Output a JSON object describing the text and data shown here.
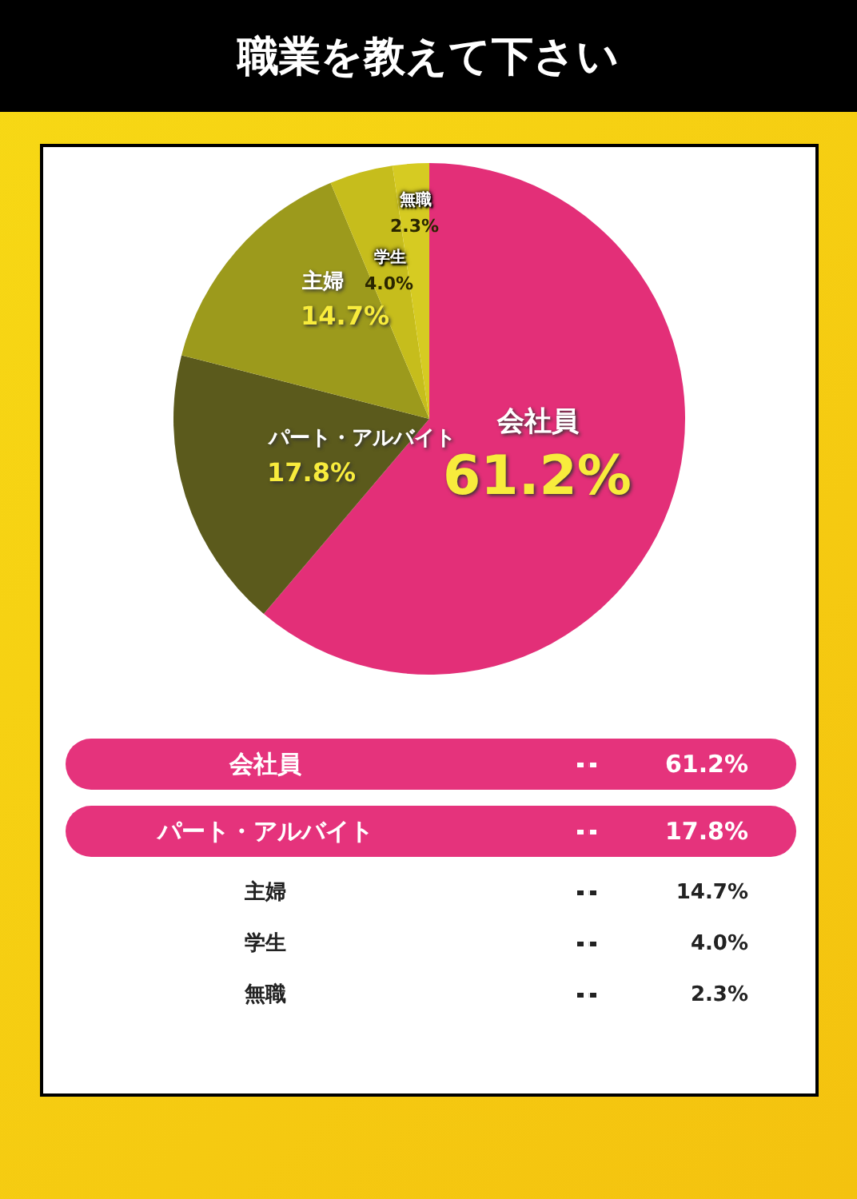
{
  "chart_data": {
    "type": "pie",
    "title": "職業を教えて下さい",
    "categories": [
      "会社員",
      "パート・アルバイト",
      "主婦",
      "学生",
      "無職"
    ],
    "values": [
      61.2,
      17.8,
      14.7,
      4.0,
      2.3
    ],
    "colors": [
      "#e32f78",
      "#5b5a1c",
      "#9c9a1c",
      "#c6bd1c",
      "#d6cb22"
    ],
    "value_labels": [
      "61.2%",
      "17.8%",
      "14.7%",
      "4.0%",
      "2.3%"
    ],
    "data_labels": true,
    "legend": false
  }
}
